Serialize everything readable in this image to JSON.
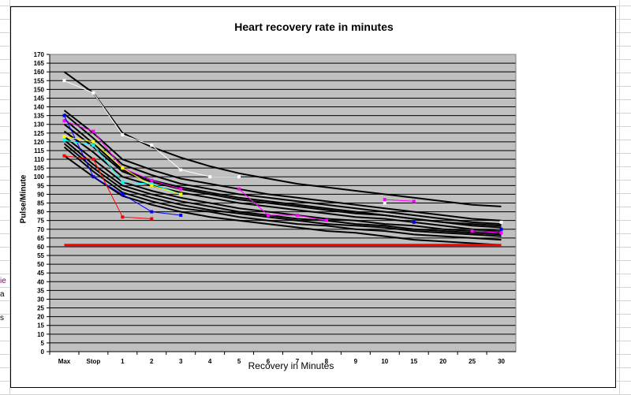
{
  "left_cell_fragments": [
    "ie",
    "a",
    "s"
  ],
  "chart_data": {
    "type": "line",
    "title": "Heart recovery rate in minutes",
    "xlabel": "Recovery in Minutes",
    "ylabel": "Pulse/Minute",
    "categories": [
      "Max",
      "Stop",
      "1",
      "2",
      "3",
      "4",
      "5",
      "6",
      "7",
      "8",
      "9",
      "10",
      "15",
      "20",
      "25",
      "30"
    ],
    "ylim": [
      0,
      170
    ],
    "ytick_step": 5,
    "grid": true,
    "legend": "none",
    "colors": {
      "plot_background": "#C0C0C0",
      "gridline": "#000000",
      "baseline": "#FF0000",
      "trend": "#000000"
    },
    "trend_series": [
      {
        "values": [
          160,
          148,
          125,
          117,
          111,
          106,
          102,
          99,
          96,
          94,
          92,
          90,
          88,
          86,
          84,
          83
        ]
      },
      {
        "values": [
          138,
          125,
          110,
          104,
          99,
          96,
          93,
          90,
          88,
          86,
          84,
          82,
          80,
          78,
          76,
          75
        ]
      },
      {
        "values": [
          136,
          122,
          107,
          101,
          96,
          93,
          90,
          88,
          86,
          84,
          82,
          80,
          78,
          76,
          74,
          73
        ]
      },
      {
        "values": [
          133,
          119,
          104,
          98,
          94,
          91,
          88,
          86,
          84,
          82,
          80,
          78,
          76,
          74,
          72,
          71
        ]
      },
      {
        "values": [
          130,
          117,
          103,
          97,
          93,
          90,
          87,
          85,
          83,
          81,
          79,
          78,
          76,
          74,
          73,
          72
        ]
      },
      {
        "values": [
          126,
          114,
          100,
          95,
          91,
          88,
          85,
          83,
          81,
          79,
          77,
          76,
          74,
          72,
          70,
          69
        ]
      },
      {
        "values": [
          123,
          110,
          97,
          92,
          88,
          85,
          82,
          80,
          78,
          76,
          75,
          73,
          72,
          70,
          69,
          68
        ]
      },
      {
        "values": [
          121,
          107,
          95,
          90,
          86,
          83,
          80,
          78,
          76,
          75,
          73,
          72,
          70,
          69,
          68,
          67
        ]
      },
      {
        "values": [
          119,
          105,
          93,
          88,
          84,
          81,
          79,
          77,
          75,
          73,
          72,
          71,
          69,
          68,
          67,
          66
        ]
      },
      {
        "values": [
          117,
          103,
          91,
          86,
          82,
          80,
          77,
          75,
          73,
          72,
          70,
          69,
          67,
          66,
          65,
          64
        ]
      },
      {
        "values": [
          112,
          100,
          89,
          84,
          80,
          77,
          75,
          73,
          71,
          69,
          68,
          66,
          64,
          63,
          62,
          61
        ]
      }
    ],
    "observed_series": [
      {
        "color": "#FFFFFF",
        "values": [
          155,
          148,
          124,
          118,
          104,
          100,
          100,
          null,
          null,
          null,
          null,
          85,
          null,
          null,
          null,
          74
        ]
      },
      {
        "color": "#FF00FF",
        "values": [
          132,
          126,
          105,
          98,
          93,
          null,
          93,
          78,
          78,
          75,
          null,
          87,
          86,
          null,
          69,
          68
        ]
      },
      {
        "color": "#0000FF",
        "values": [
          135,
          100,
          90,
          80,
          78,
          null,
          null,
          null,
          null,
          null,
          null,
          null,
          74,
          null,
          null,
          70
        ]
      },
      {
        "color": "#00FFFF",
        "values": [
          121,
          118,
          97,
          96,
          90,
          null,
          null,
          null,
          null,
          null,
          null,
          null,
          null,
          null,
          null,
          null
        ]
      },
      {
        "color": "#FFFF00",
        "values": [
          123,
          120,
          105,
          95,
          90,
          null,
          null,
          null,
          null,
          null,
          null,
          null,
          null,
          null,
          null,
          null
        ]
      },
      {
        "color": "#FF0000",
        "values": [
          112,
          110,
          77,
          76,
          null,
          null,
          null,
          null,
          null,
          null,
          null,
          null,
          null,
          null,
          null,
          null
        ]
      },
      {
        "color": "#FF0000",
        "values": [
          61,
          61,
          61,
          61,
          61,
          61,
          61,
          61,
          61,
          61,
          61,
          61,
          61,
          61,
          61,
          61
        ]
      }
    ]
  }
}
